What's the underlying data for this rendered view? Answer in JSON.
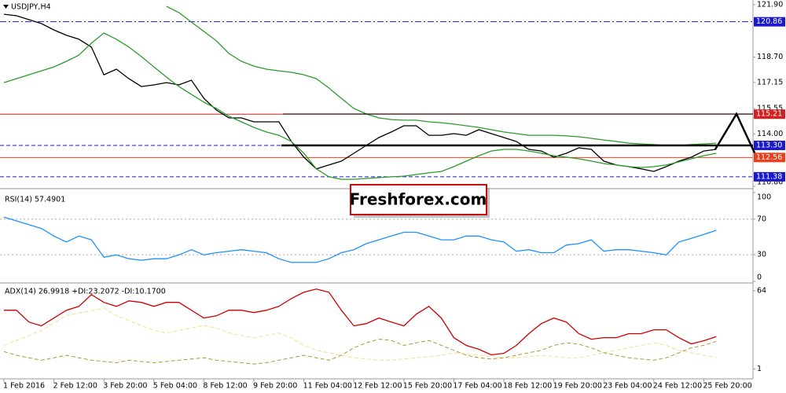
{
  "chart_data": [
    {
      "type": "line",
      "title": "USDJPY,H4",
      "categories": [
        "1 Feb 2016",
        null,
        null,
        null,
        "2 Feb 12:00",
        null,
        null,
        null,
        "3 Feb 20:00",
        null,
        null,
        null,
        "5 Feb 04:00",
        null,
        null,
        null,
        "8 Feb 12:00",
        null,
        null,
        null,
        "9 Feb 20:00",
        null,
        null,
        null,
        "11 Feb 04:00",
        null,
        null,
        null,
        "12 Feb 12:00",
        null,
        null,
        null,
        "15 Feb 20:00",
        null,
        null,
        null,
        "17 Feb 04:00",
        null,
        null,
        null,
        "18 Feb 12:00",
        null,
        null,
        null,
        "19 Feb 20:00",
        null,
        null,
        null,
        "23 Feb 04:00",
        null,
        null,
        null,
        "24 Feb 12:00",
        null,
        null,
        null,
        "25 Feb 20:00",
        null
      ],
      "ylim": [
        110.8,
        122.19
      ],
      "yticks": [
        {
          "value": 121.9,
          "label": "121.90"
        },
        {
          "value": 118.7,
          "label": "118.70"
        },
        117.15,
        115.55,
        {
          "value": 114,
          "label": "114.00"
        },
        {
          "value": 110.8,
          "label": "110.80"
        }
      ],
      "grid": false,
      "levels": [
        {
          "value": 120.86,
          "label": "120.86",
          "color": "#1a1acd",
          "style": "dashdot"
        },
        {
          "value": 115.21,
          "label": "115.21",
          "color": "#d42020",
          "style": "solid"
        },
        {
          "value": 113.3,
          "label": "113.30",
          "color": "#1a1acd",
          "style": "dashed"
        },
        {
          "value": 112.56,
          "label": "112.56",
          "color": "#e8401c",
          "style": "solid"
        },
        {
          "value": 111.38,
          "label": "111.38",
          "color": "#1a1acd",
          "style": "dashed"
        }
      ],
      "series": [
        {
          "color": "#000000",
          "style": "solid",
          "values": [
            121.32,
            121.23,
            120.99,
            120.75,
            120.36,
            120.03,
            119.79,
            119.31,
            117.62,
            117.96,
            117.38,
            116.9,
            117.0,
            117.14,
            117.0,
            117.29,
            116.18,
            115.46,
            114.98,
            114.98,
            114.74,
            114.74,
            114.74,
            113.54,
            112.58,
            111.86,
            112.1,
            112.34,
            112.82,
            113.3,
            113.78,
            114.12,
            114.5,
            114.5,
            113.92,
            113.92,
            114.02,
            113.92,
            114.26,
            114.02,
            113.78,
            113.54,
            113.06,
            112.96,
            112.58,
            112.82,
            113.15,
            113.06,
            112.34,
            112.1,
            112.0,
            111.86,
            111.71,
            112.0,
            112.34,
            112.58,
            112.96,
            113.06
          ]
        },
        {
          "color": "#2e9a2e",
          "style": "solid",
          "values": [
            null,
            null,
            null,
            null,
            null,
            null,
            null,
            null,
            null,
            null,
            null,
            null,
            null,
            121.8,
            121.42,
            120.84,
            120.27,
            119.69,
            118.92,
            118.44,
            118.15,
            117.96,
            117.86,
            117.77,
            117.62,
            117.38,
            116.81,
            116.18,
            115.56,
            115.22,
            114.98,
            114.88,
            114.84,
            114.84,
            114.74,
            114.69,
            114.6,
            114.5,
            114.4,
            114.26,
            114.12,
            114.02,
            113.92,
            113.92,
            113.92,
            113.88,
            113.83,
            113.73,
            113.63,
            113.54,
            113.44,
            113.39,
            113.35,
            113.3,
            113.3,
            113.35,
            113.39,
            113.44
          ]
        },
        {
          "color": "#2e9a2e",
          "style": "solid",
          "values": [
            117.14,
            117.38,
            117.62,
            117.86,
            118.1,
            118.44,
            118.82,
            119.55,
            120.17,
            119.79,
            119.31,
            118.73,
            118.1,
            117.48,
            116.9,
            116.42,
            115.94,
            115.56,
            115.08,
            114.74,
            114.4,
            114.12,
            113.92,
            113.54,
            112.82,
            111.86,
            111.38,
            111.23,
            111.23,
            111.28,
            111.33,
            111.38,
            111.42,
            111.52,
            111.62,
            111.71,
            112.0,
            112.34,
            112.67,
            112.96,
            113.06,
            113.06,
            112.96,
            112.82,
            112.67,
            112.58,
            112.48,
            112.34,
            112.19,
            112.1,
            112.0,
            111.95,
            112.0,
            112.1,
            112.29,
            112.48,
            112.67,
            112.82
          ]
        }
      ]
    },
    {
      "type": "line",
      "title": "RSI(14) 57.4901",
      "ylim": [
        0,
        100
      ],
      "yticks": [
        100,
        70,
        30,
        0
      ],
      "grid": true,
      "series": [
        {
          "color": "#1e90ff",
          "style": "solid",
          "values": [
            72.3,
            68.1,
            63.8,
            59.6,
            51.1,
            44.3,
            51.1,
            46.8,
            27.2,
            29.8,
            25.5,
            23.8,
            25.5,
            25.5,
            29.8,
            35.7,
            29.8,
            32.3,
            34.0,
            35.7,
            34.0,
            32.3,
            25.5,
            21.3,
            21.3,
            21.3,
            25.5,
            32.3,
            35.7,
            42.6,
            46.8,
            51.1,
            55.3,
            55.3,
            51.1,
            46.8,
            46.8,
            51.1,
            51.1,
            46.8,
            44.3,
            34.0,
            35.7,
            32.3,
            32.3,
            40.9,
            42.6,
            46.8,
            34.0,
            35.7,
            35.7,
            34.0,
            32.3,
            29.8,
            44.3,
            48.5,
            52.8,
            57.49
          ]
        }
      ]
    },
    {
      "type": "line",
      "title": "ADX(14) 26.9918 +DI:23.2072 -DI:10.1700",
      "ylim": [
        -7,
        69
      ],
      "yticks": [
        64,
        1
      ],
      "grid": false,
      "series": [
        {
          "color": "#f0e08a",
          "style": "dashed",
          "values": [
            20,
            24,
            28,
            32,
            38,
            44,
            46,
            48,
            50,
            44,
            40,
            36,
            32,
            30,
            32,
            34,
            36,
            34,
            30,
            28,
            26,
            28,
            30,
            26,
            20,
            16,
            14,
            12,
            10,
            9,
            8,
            8,
            9,
            10,
            11,
            12,
            14,
            13,
            12,
            11,
            10,
            10,
            11,
            12,
            11,
            10,
            10,
            12,
            14,
            16,
            18,
            20,
            22,
            20,
            16,
            14,
            12,
            10.17
          ]
        },
        {
          "color": "#a89a3c",
          "style": "dashed",
          "values": [
            15,
            12,
            10,
            8,
            10,
            12,
            10,
            8,
            7,
            6,
            8,
            7,
            6,
            7,
            8,
            9,
            10,
            8,
            7,
            6,
            5,
            6,
            8,
            10,
            12,
            10,
            8,
            12,
            18,
            22,
            25,
            24,
            20,
            22,
            24,
            20,
            16,
            12,
            10,
            9,
            10,
            12,
            14,
            16,
            20,
            22,
            21,
            18,
            14,
            12,
            10,
            9,
            8,
            10,
            14,
            18,
            20,
            23.21
          ]
        },
        {
          "color": "#cc0000",
          "style": "solid",
          "values": [
            48.3,
            48.3,
            38.8,
            35.7,
            42.0,
            48.3,
            51.4,
            60.9,
            54.6,
            51.4,
            55.8,
            54.6,
            51.4,
            54.6,
            54.6,
            48.3,
            42.0,
            43.8,
            48.3,
            48.3,
            46.4,
            48.3,
            51.4,
            57.7,
            62.8,
            65.3,
            62.8,
            48.3,
            35.7,
            37.5,
            42.0,
            38.8,
            35.7,
            45.1,
            51.4,
            42.0,
            26.2,
            19.9,
            16.8,
            12.3,
            13.6,
            19.9,
            29.4,
            37.5,
            42.0,
            38.8,
            29.4,
            24.9,
            26.2,
            26.2,
            29.4,
            29.4,
            32.5,
            32.5,
            26.2,
            21.2,
            23.7,
            26.99
          ]
        }
      ]
    }
  ],
  "watermark": "Freshforex.com"
}
